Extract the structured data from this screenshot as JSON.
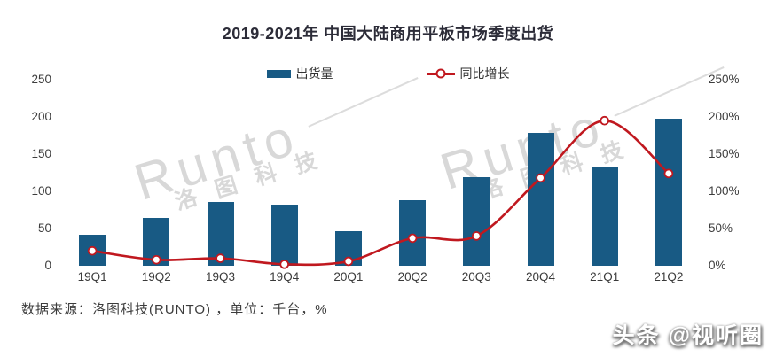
{
  "page": {
    "footer_source": "数据来源：洛图科技(RUNTO) ，单位：千台，%",
    "corner_watermark": "头条 @视听圈",
    "brand_watermark": {
      "en": "Runto",
      "cn": "洛图科技"
    }
  },
  "chart_data": {
    "type": "combo bar+line",
    "title": "2019-2021年 中国大陆商用平板市场季度出货",
    "categories": [
      "19Q1",
      "19Q2",
      "19Q3",
      "19Q4",
      "20Q1",
      "20Q2",
      "20Q3",
      "20Q4",
      "21Q1",
      "21Q2"
    ],
    "series": [
      {
        "name": "出货量",
        "type": "bar",
        "axis": "left",
        "unit": "千台",
        "color": "#185a84",
        "values": [
          42,
          64,
          86,
          82,
          46,
          88,
          119,
          178,
          133,
          198
        ]
      },
      {
        "name": "同比增长",
        "type": "line",
        "axis": "right",
        "unit": "%",
        "color": "#c0181f",
        "marker": "open-circle",
        "values": [
          20,
          8,
          10,
          2,
          6,
          37,
          40,
          118,
          195,
          124
        ]
      }
    ],
    "left_axis": {
      "min": 0,
      "max": 250,
      "tick_labels": [
        "250",
        "200",
        "150",
        "100",
        "50",
        "0"
      ]
    },
    "right_axis": {
      "min": 0,
      "max": 250,
      "tick_labels": [
        "250%",
        "200%",
        "150%",
        "100%",
        "50%",
        "0%"
      ]
    },
    "legend_position": "top-center",
    "grid": false,
    "background": "#ffffff"
  }
}
